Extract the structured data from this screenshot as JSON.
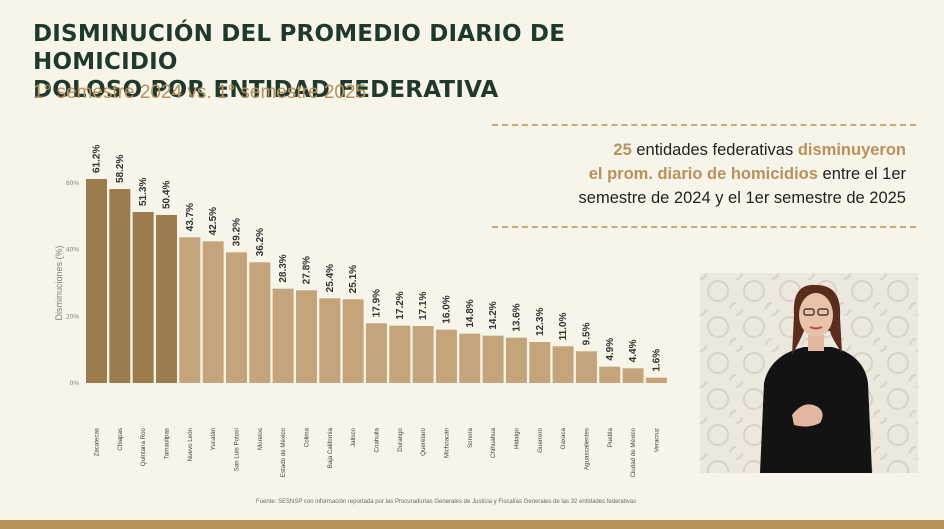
{
  "title_line1": "DISMINUCIÓN DEL PROMEDIO DIARIO DE HOMICIDIO",
  "title_line2": "DOLOSO POR ENTIDAD FEDERATIVA",
  "subtitle": "1° semestre 2024 vs. 1° semestre 2025",
  "callout": {
    "count": "25",
    "part1": " entidades federativas ",
    "highlight1": "disminuyeron",
    "highlight2": "el prom. diario de homicidios",
    "part2": " entre el 1er",
    "line3": "semestre de 2024 y el 1er semestre de 2025"
  },
  "source": "Fuente: SESNSP con información reportada por las Procuradurías Generales de Justicia y Fiscalías Generales de las 32 entidades federativas",
  "colors": {
    "title": "#1f3a2c",
    "accent": "#b8925c",
    "bar_dark": "#9c7c4e",
    "bar_light": "#c4a47a",
    "background": "#f7f4e9"
  },
  "chart_data": {
    "type": "bar",
    "ylabel": "Disminuciones (%)",
    "ylim": [
      0,
      65
    ],
    "yticks": [
      "0%",
      "20%",
      "40%",
      "60%"
    ],
    "ytick_values": [
      0,
      20,
      40,
      60
    ],
    "grid": false,
    "categories": [
      "Zacatecas",
      "Chiapas",
      "Quintana Roo",
      "Tamaulipas",
      "Nuevo León",
      "Yucatán",
      "San Luis Potosí",
      "Morelos",
      "Estado de México",
      "Colima",
      "Baja California",
      "Jalisco",
      "Coahuila",
      "Durango",
      "Querétaro",
      "Michoacán",
      "Sonora",
      "Chihuahua",
      "Hidalgo",
      "Guerrero",
      "Oaxaca",
      "Aguascalientes",
      "Puebla",
      "Ciudad de México",
      "Veracruz"
    ],
    "values": [
      61.2,
      58.2,
      51.3,
      50.4,
      43.7,
      42.5,
      39.2,
      36.2,
      28.3,
      27.8,
      25.4,
      25.1,
      17.9,
      17.2,
      17.1,
      16.0,
      14.8,
      14.2,
      13.6,
      12.3,
      11.0,
      9.5,
      4.9,
      4.4,
      1.6
    ],
    "data_labels": [
      "61.2%",
      "58.2%",
      "51.3%",
      "50.4%",
      "43.7%",
      "42.5%",
      "39.2%",
      "36.2%",
      "28.3%",
      "27.8%",
      "25.4%",
      "25.1%",
      "17.9%",
      "17.2%",
      "17.1%",
      "16.0%",
      "14.8%",
      "14.2%",
      "13.6%",
      "12.3%",
      "11.0%",
      "9.5%",
      "4.9%",
      "4.4%",
      "1.6%"
    ],
    "highlight_count": 4
  }
}
